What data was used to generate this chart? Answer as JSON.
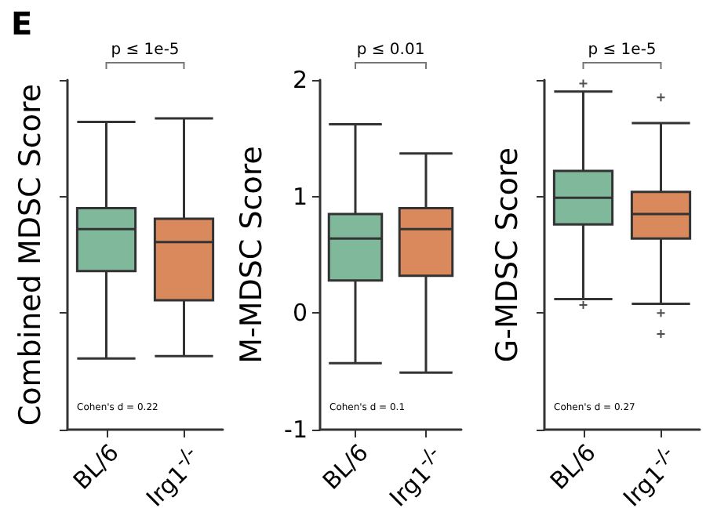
{
  "chart_data": [
    {
      "type": "box",
      "title": "E",
      "ylabel": "Combined MDSC Score",
      "categories": [
        "BL/6",
        "Irg1$^{-/-}$"
      ],
      "colors": [
        "#7fb89a",
        "#d9895c"
      ],
      "ylim": [
        -1,
        2
      ],
      "yticks": [
        -1,
        0,
        1,
        2
      ],
      "tick_labels": "x",
      "annotations": [
        "p ≤ 1e-5",
        "Cohen's d = 0.22"
      ],
      "boxes": [
        {
          "low": -0.39,
          "q1": 0.36,
          "median": 0.72,
          "q3": 0.9,
          "high": 1.64
        },
        {
          "low": -0.37,
          "q1": 0.11,
          "median": 0.61,
          "q3": 0.81,
          "high": 1.67
        }
      ]
    },
    {
      "type": "box",
      "ylabel": "M-MDSC Score",
      "categories": [
        "BL/6",
        "Irg1$^{-/-}$"
      ],
      "colors": [
        "#7fb89a",
        "#d9895c"
      ],
      "ylim": [
        -1,
        2
      ],
      "yticks": [
        -1,
        0,
        1,
        2
      ],
      "annotations": [
        "p ≤ 0.01",
        "Cohen's d = 0.1"
      ],
      "boxes": [
        {
          "low": -0.43,
          "q1": 0.28,
          "median": 0.64,
          "q3": 0.85,
          "high": 1.62
        },
        {
          "low": -0.51,
          "q1": 0.32,
          "median": 0.72,
          "q3": 0.9,
          "high": 1.37
        }
      ]
    },
    {
      "type": "box",
      "ylabel": "G-MDSC Score",
      "categories": [
        "BL/6",
        "Irg1$^{-/-}$"
      ],
      "colors": [
        "#7fb89a",
        "#d9895c"
      ],
      "ylim": [
        -1,
        2
      ],
      "yticks": [
        -1,
        0,
        1,
        2
      ],
      "tick_labels": "x",
      "annotations": [
        "p ≤ 1e-5",
        "Cohen's d = 0.27"
      ],
      "boxes": [
        {
          "low": 0.12,
          "q1": 0.76,
          "median": 0.99,
          "q3": 1.22,
          "high": 1.9,
          "outliers": [
            1.97,
            0.07
          ]
        },
        {
          "low": 0.08,
          "q1": 0.64,
          "median": 0.85,
          "q3": 1.04,
          "high": 1.63,
          "outliers": [
            1.85,
            0.0,
            -0.18
          ]
        }
      ]
    }
  ]
}
